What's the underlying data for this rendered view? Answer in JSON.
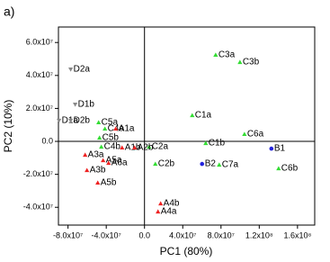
{
  "chart_data": {
    "type": "scatter",
    "panel_label": "a)",
    "x_label": "PC1 (80%)",
    "y_label": "PC2 (10%)",
    "xlim": [
      -90000000,
      178000000
    ],
    "ylim": [
      -50800000,
      69400000
    ],
    "xticks": [
      {
        "value": -80000000,
        "label": "-8.0x10⁷"
      },
      {
        "value": -40000000,
        "label": "-4.0x10⁷"
      },
      {
        "value": 0,
        "label": "0.0"
      },
      {
        "value": 40000000,
        "label": "4.0x10⁷"
      },
      {
        "value": 80000000,
        "label": "8.0x10⁷"
      },
      {
        "value": 120000000,
        "label": "1.2x10⁸"
      },
      {
        "value": 160000000,
        "label": "1.6x10⁸"
      }
    ],
    "yticks": [
      {
        "value": -40000000,
        "label": "-4.0x10⁷"
      },
      {
        "value": -20000000,
        "label": "-2.0x10⁷"
      },
      {
        "value": 0,
        "label": "0.0"
      },
      {
        "value": 20000000,
        "label": "2.0x10⁷"
      },
      {
        "value": 40000000,
        "label": "4.0x10⁷"
      },
      {
        "value": 60000000,
        "label": "6.0x10⁷"
      }
    ],
    "series": [
      {
        "color": "#888888",
        "marker": "triangle-down",
        "labels": [
          "D2a",
          "D1b",
          "D1a",
          "D2b"
        ],
        "x": [
          -77200000,
          -72500000,
          -89400000,
          -77200000
        ],
        "y": [
          43700000,
          22400000,
          12600000,
          12600000
        ]
      },
      {
        "color": "#33dd33",
        "marker": "triangle-up",
        "labels": [
          "C3a",
          "C3b",
          "C1a",
          "C6a",
          "C5a",
          "C4a",
          "C5b",
          "C4b",
          "C2a",
          "C1b",
          "C2b",
          "C7a",
          "C6b"
        ],
        "x": [
          74400000,
          99800000,
          49900000,
          104500000,
          -48000000,
          -41400000,
          -47100000,
          -45200000,
          4700000,
          64000000,
          11300000,
          78100000,
          140200000
        ],
        "y": [
          52500000,
          48100000,
          15800000,
          4400000,
          11500000,
          7700000,
          2200000,
          -3300000,
          -3300000,
          -1100000,
          -13700000,
          -14200000,
          -16400000
        ]
      },
      {
        "color": "#ee2222",
        "marker": "triangle-up",
        "labels": [
          "A1a",
          "A1b",
          "A2b",
          "A3a",
          "A5a",
          "A6a",
          "A3b",
          "A5b",
          "A4b",
          "A4a"
        ],
        "x": [
          -30100000,
          -23500000,
          -10400000,
          -62100000,
          -43300000,
          -37600000,
          -60200000,
          -48900000,
          16900000,
          14100000
        ],
        "y": [
          7700000,
          -3800000,
          -3800000,
          -8200000,
          -11500000,
          -13100000,
          -17500000,
          -25100000,
          -37700000,
          -42600000
        ]
      },
      {
        "color": "#2222dd",
        "marker": "circle",
        "labels": [
          "B1",
          "B2"
        ],
        "x": [
          132700000,
          60200000
        ],
        "y": [
          -4400000,
          -13700000
        ]
      }
    ]
  }
}
